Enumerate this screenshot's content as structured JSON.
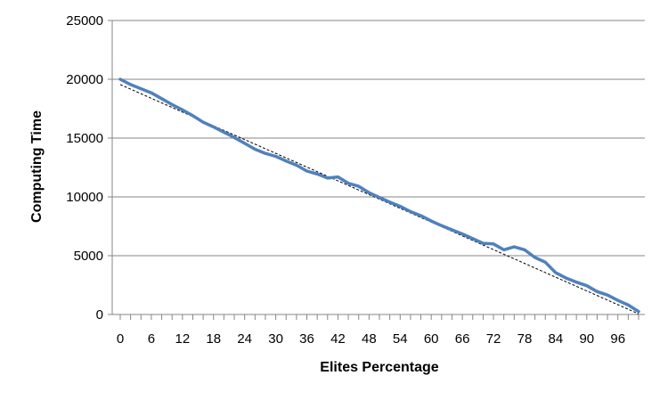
{
  "chart_data": {
    "type": "line",
    "xlabel": "Elites Percentage",
    "ylabel": "Computing Time",
    "xlim": [
      0,
      100
    ],
    "ylim": [
      0,
      25000
    ],
    "grid": "horizontal",
    "legend": "none",
    "x_ticks": [
      0,
      6,
      12,
      18,
      24,
      30,
      36,
      42,
      48,
      54,
      60,
      66,
      72,
      78,
      84,
      90,
      96
    ],
    "y_ticks": [
      0,
      5000,
      10000,
      15000,
      20000,
      25000
    ],
    "series": [
      {
        "color": "#4f81bd",
        "x": [
          0,
          2,
          4,
          6,
          8,
          10,
          12,
          14,
          16,
          18,
          20,
          22,
          24,
          26,
          28,
          30,
          32,
          34,
          36,
          38,
          40,
          42,
          44,
          46,
          48,
          50,
          52,
          54,
          56,
          58,
          60,
          62,
          64,
          66,
          68,
          70,
          72,
          74,
          76,
          78,
          80,
          82,
          84,
          86,
          88,
          90,
          92,
          94,
          96,
          98,
          100
        ],
        "values": [
          20000,
          19550,
          19200,
          18850,
          18350,
          17850,
          17400,
          16900,
          16350,
          15950,
          15500,
          15050,
          14550,
          14050,
          13700,
          13450,
          13050,
          12700,
          12200,
          11950,
          11600,
          11700,
          11150,
          10900,
          10350,
          9950,
          9550,
          9200,
          8750,
          8400,
          7950,
          7550,
          7200,
          6850,
          6450,
          6050,
          6000,
          5500,
          5750,
          5500,
          4850,
          4450,
          3550,
          3100,
          2750,
          2450,
          1950,
          1650,
          1200,
          800,
          250
        ]
      },
      {
        "trendline": true,
        "color": "#000000",
        "x": [
          0,
          100
        ],
        "values": [
          19550,
          50
        ]
      }
    ]
  }
}
